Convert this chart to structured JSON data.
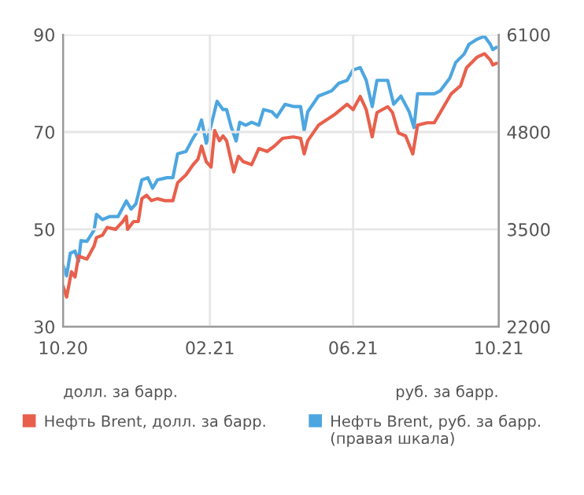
{
  "chart_data": {
    "type": "line",
    "annotations": [
      "долл. за барр.",
      "руб. за барр."
    ],
    "xlim": [
      "2020-10-01",
      "2021-10-01"
    ],
    "xticks": [
      {
        "value": "2020-10-01",
        "label": "10.20"
      },
      {
        "value": "2021-02-01",
        "label": "02.21"
      },
      {
        "value": "2021-06-01",
        "label": "06.21"
      },
      {
        "value": "2021-10-01",
        "label": "10.21"
      }
    ],
    "ylim": [
      30,
      90
    ],
    "yticks": [
      30,
      50,
      70,
      90
    ],
    "y2lim": [
      2200,
      6100
    ],
    "y2ticks": [
      2200,
      3500,
      4800,
      6100
    ],
    "grid": true,
    "legend": "bottom",
    "marker": "none",
    "line_style": "solid",
    "series": [
      {
        "name": "Нефть Brent, долл. за барр.",
        "color": "#e8604c",
        "x": [
          "2020-10-01",
          "2020-10-04",
          "2020-10-08",
          "2020-10-11",
          "2020-10-14",
          "2020-10-21",
          "2020-10-27",
          "2020-10-29",
          "2020-11-03",
          "2020-11-07",
          "2020-11-14",
          "2020-11-20",
          "2020-11-23",
          "2020-11-24",
          "2020-11-29",
          "2020-12-03",
          "2020-12-06",
          "2020-12-10",
          "2020-12-14",
          "2020-12-19",
          "2020-12-25",
          "2021-01-01",
          "2021-01-05",
          "2021-01-12",
          "2021-01-18",
          "2021-01-22",
          "2021-01-25",
          "2021-01-29",
          "2021-02-02",
          "2021-02-05",
          "2021-02-09",
          "2021-02-12",
          "2021-02-15",
          "2021-02-18",
          "2021-02-21",
          "2021-02-25",
          "2021-03-01",
          "2021-03-08",
          "2021-03-14",
          "2021-03-21",
          "2021-03-27",
          "2021-04-03",
          "2021-04-12",
          "2021-04-18",
          "2021-04-21",
          "2021-04-24",
          "2021-05-03",
          "2021-05-16",
          "2021-05-27",
          "2021-06-01",
          "2021-06-07",
          "2021-06-12",
          "2021-06-17",
          "2021-06-21",
          "2021-06-30",
          "2021-07-04",
          "2021-07-09",
          "2021-07-15",
          "2021-07-21",
          "2021-07-25",
          "2021-08-02",
          "2021-08-08",
          "2021-08-13",
          "2021-08-22",
          "2021-08-30",
          "2021-09-04",
          "2021-09-13",
          "2021-09-19",
          "2021-09-24",
          "2021-09-26",
          "2021-09-29"
        ],
        "values": [
          38.3,
          36.1,
          41.3,
          40.2,
          44.5,
          43.9,
          46.6,
          48.3,
          48.8,
          50.4,
          50,
          51.6,
          52.7,
          50,
          51.6,
          51.6,
          56.3,
          57,
          55.9,
          56.3,
          55.9,
          55.9,
          59.6,
          61.2,
          63.3,
          64.4,
          67.1,
          63.9,
          62.8,
          70.3,
          68.2,
          69.2,
          68.2,
          65,
          61.8,
          65,
          63.9,
          63.3,
          66.6,
          66,
          67.1,
          68.7,
          69,
          68.7,
          65.5,
          68.2,
          71.4,
          73.5,
          75.7,
          74.6,
          77.3,
          74.6,
          69,
          74,
          75.2,
          74,
          69.8,
          69.2,
          65.5,
          71.4,
          71.9,
          71.9,
          74,
          77.8,
          79.5,
          83.2,
          85.4,
          86.1,
          84.8,
          83.8,
          84.1
        ]
      },
      {
        "name": "Нефть Brent, руб. за барр. (правая шкала)",
        "color": "#4da6e0",
        "axis": "y2",
        "x": [
          "2020-10-01",
          "2020-10-04",
          "2020-10-07",
          "2020-10-11",
          "2020-10-14",
          "2020-10-16",
          "2020-10-21",
          "2020-10-27",
          "2020-10-29",
          "2020-11-03",
          "2020-11-09",
          "2020-11-16",
          "2020-11-23",
          "2020-11-27",
          "2020-12-01",
          "2020-12-06",
          "2020-12-11",
          "2020-12-15",
          "2020-12-19",
          "2020-12-27",
          "2021-01-01",
          "2021-01-05",
          "2021-01-12",
          "2021-01-18",
          "2021-01-22",
          "2021-01-25",
          "2021-01-29",
          "2021-02-02",
          "2021-02-07",
          "2021-02-12",
          "2021-02-15",
          "2021-02-19",
          "2021-02-23",
          "2021-02-26",
          "2021-03-03",
          "2021-03-08",
          "2021-03-14",
          "2021-03-18",
          "2021-03-25",
          "2021-03-29",
          "2021-04-05",
          "2021-04-12",
          "2021-04-18",
          "2021-04-21",
          "2021-04-24",
          "2021-05-03",
          "2021-05-14",
          "2021-05-20",
          "2021-05-27",
          "2021-06-01",
          "2021-06-07",
          "2021-06-12",
          "2021-06-17",
          "2021-06-21",
          "2021-06-30",
          "2021-07-05",
          "2021-07-11",
          "2021-07-18",
          "2021-07-22",
          "2021-07-25",
          "2021-08-02",
          "2021-08-08",
          "2021-08-13",
          "2021-08-21",
          "2021-08-26",
          "2021-09-02",
          "2021-09-06",
          "2021-09-13",
          "2021-09-19",
          "2021-09-24",
          "2021-09-26",
          "2021-09-29"
        ],
        "values": [
          3020,
          2880,
          3180,
          3210,
          3070,
          3350,
          3340,
          3490,
          3700,
          3630,
          3670,
          3670,
          3880,
          3770,
          3840,
          4160,
          4190,
          4050,
          4160,
          4190,
          4190,
          4510,
          4540,
          4720,
          4820,
          4960,
          4650,
          4890,
          5210,
          5100,
          5100,
          4860,
          4680,
          4930,
          4890,
          4930,
          4890,
          5100,
          5070,
          5000,
          5170,
          5140,
          5140,
          4820,
          5070,
          5280,
          5350,
          5450,
          5490,
          5630,
          5660,
          5490,
          5140,
          5490,
          5490,
          5170,
          5280,
          5070,
          4860,
          5310,
          5310,
          5310,
          5350,
          5520,
          5730,
          5840,
          5970,
          6040,
          6080,
          5970,
          5900,
          5930
        ]
      }
    ]
  }
}
